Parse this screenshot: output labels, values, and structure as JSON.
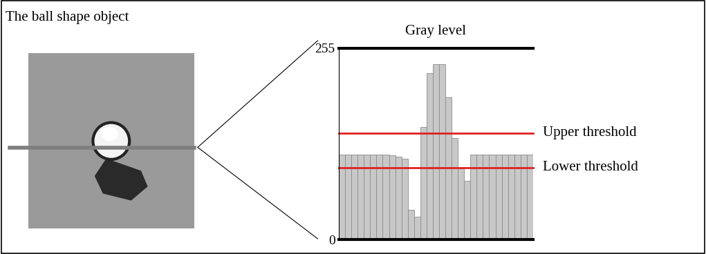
{
  "image_panel": {
    "title": "The ball shape object"
  },
  "chart_data": {
    "type": "bar",
    "title": "Gray level",
    "values": [
      113,
      113,
      113,
      113,
      113,
      113,
      113,
      113,
      112,
      110,
      108,
      40,
      30,
      150,
      222,
      234,
      234,
      190,
      135,
      95,
      78,
      113,
      113,
      113,
      113,
      113,
      113,
      113,
      113,
      113,
      113
    ],
    "color": "#c8c8c8",
    "ylim": [
      0,
      255
    ],
    "yticks": [
      0,
      255
    ],
    "tick_labels": "y",
    "thresholds": [
      {
        "label": "Upper threshold",
        "value": 142,
        "color": "#e02020"
      },
      {
        "label": "Lower threshold",
        "value": 96,
        "color": "#e02020"
      }
    ]
  }
}
